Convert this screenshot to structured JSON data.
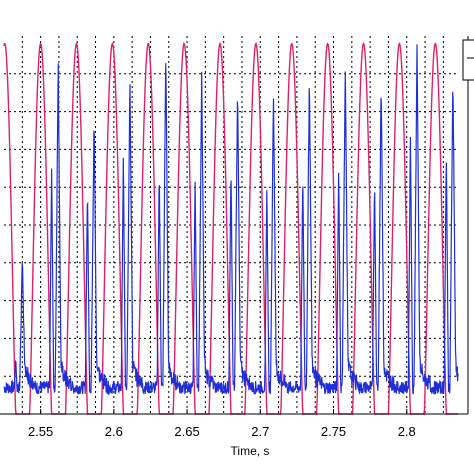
{
  "chart_data": {
    "type": "line",
    "title": "",
    "xlabel": "Time, s",
    "ylabel": "",
    "xlim": [
      2.525,
      2.835
    ],
    "ylim": [
      0,
      1
    ],
    "x_ticks": [
      2.55,
      2.6,
      2.65,
      2.7,
      2.75,
      2.8
    ],
    "x_tick_labels": [
      "2.55",
      "2.6",
      "2.65",
      "2.7",
      "2.75",
      "2.8"
    ],
    "grid": true,
    "grid_style": "dotted",
    "legend_placement": "top-right",
    "series": [
      {
        "color": "#e0206a",
        "style": "periodic pulse train",
        "period": 0.0245,
        "peak_times": [
          2.5255,
          2.55,
          2.5745,
          2.599,
          2.6235,
          2.648,
          2.6725,
          2.697,
          2.7215,
          2.746,
          2.7705,
          2.795,
          2.8195
        ],
        "peak_value": 0.98,
        "base_value": 0.0
      },
      {
        "color": "#1f2fd6",
        "style": "noisy pulse train",
        "peak_times": [
          2.5375,
          2.562,
          2.5865,
          2.611,
          2.6355,
          2.66,
          2.6845,
          2.709,
          2.7335,
          2.758,
          2.7825,
          2.807,
          2.8315
        ],
        "peak_values": [
          0.42,
          0.93,
          0.78,
          0.9,
          0.97,
          0.9,
          0.88,
          0.85,
          0.9,
          0.93,
          0.88,
          0.97,
          0.9
        ],
        "secondary_peak_values": [
          0.15,
          0.65,
          0.6,
          0.68,
          0.65,
          0.62,
          0.66,
          0.6,
          0.64,
          0.65,
          0.62,
          0.75,
          0.7
        ],
        "base_value": 0.07
      }
    ]
  }
}
